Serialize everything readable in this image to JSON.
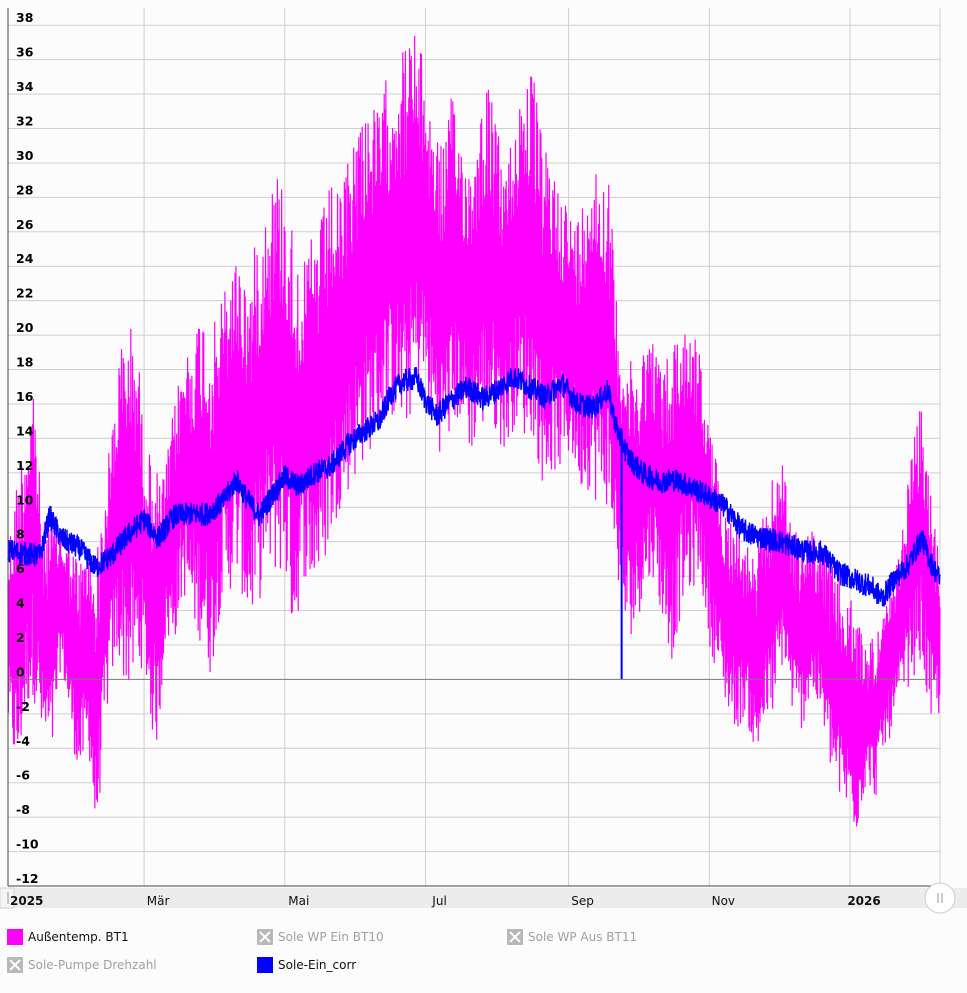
{
  "chart_data": {
    "type": "line",
    "ylim": [
      -12,
      39
    ],
    "y_ticks": [
      38,
      36,
      34,
      32,
      30,
      28,
      26,
      24,
      22,
      20,
      18,
      16,
      14,
      12,
      10,
      8,
      6,
      4,
      2,
      0,
      -2,
      -4,
      -6,
      -8,
      -10,
      -12
    ],
    "x_range": [
      "2025-01-01",
      "2026-02-09"
    ],
    "x_ticks": [
      {
        "label": "2025",
        "date": "2025-01-01",
        "bold": true
      },
      {
        "label": "Mär",
        "date": "2025-03-01",
        "bold": false
      },
      {
        "label": "Mai",
        "date": "2025-05-01",
        "bold": false
      },
      {
        "label": "Jul",
        "date": "2025-07-01",
        "bold": false
      },
      {
        "label": "Sep",
        "date": "2025-09-01",
        "bold": false
      },
      {
        "label": "Nov",
        "date": "2025-11-01",
        "bold": false
      },
      {
        "label": "2026",
        "date": "2026-01-01",
        "bold": true
      }
    ],
    "grid": true,
    "legend_position": "bottom",
    "series": [
      {
        "name": "Außentemp. BT1",
        "color": "#ff00ff",
        "visible": true,
        "points": [
          [
            "2025-01-01",
            -3,
            8
          ],
          [
            "2025-01-05",
            -6,
            12
          ],
          [
            "2025-01-09",
            -2,
            15
          ],
          [
            "2025-01-12",
            -1,
            18
          ],
          [
            "2025-01-16",
            -4,
            9
          ],
          [
            "2025-01-20",
            -5,
            10
          ],
          [
            "2025-01-24",
            1,
            9
          ],
          [
            "2025-01-28",
            -3,
            8
          ],
          [
            "2025-02-01",
            -6,
            7
          ],
          [
            "2025-02-05",
            -4,
            8
          ],
          [
            "2025-02-08",
            -10,
            7
          ],
          [
            "2025-02-12",
            -3,
            11
          ],
          [
            "2025-02-15",
            0,
            15
          ],
          [
            "2025-02-18",
            1,
            19
          ],
          [
            "2025-02-22",
            -1,
            21
          ],
          [
            "2025-02-26",
            0,
            20
          ],
          [
            "2025-03-01",
            1,
            14
          ],
          [
            "2025-03-04",
            -3,
            13
          ],
          [
            "2025-03-07",
            -4,
            12
          ],
          [
            "2025-03-10",
            2,
            12
          ],
          [
            "2025-03-14",
            2,
            16
          ],
          [
            "2025-03-18",
            5,
            19
          ],
          [
            "2025-03-22",
            3,
            20
          ],
          [
            "2025-03-26",
            2,
            22
          ],
          [
            "2025-03-30",
            0,
            20
          ],
          [
            "2025-04-03",
            4,
            22
          ],
          [
            "2025-04-07",
            5,
            24
          ],
          [
            "2025-04-11",
            6,
            25
          ],
          [
            "2025-04-15",
            3,
            23
          ],
          [
            "2025-04-19",
            4,
            26
          ],
          [
            "2025-04-23",
            6,
            28
          ],
          [
            "2025-04-27",
            6,
            30
          ],
          [
            "2025-05-01",
            6,
            29
          ],
          [
            "2025-05-05",
            2,
            26
          ],
          [
            "2025-05-09",
            6,
            24
          ],
          [
            "2025-05-13",
            5,
            26
          ],
          [
            "2025-05-17",
            6,
            27
          ],
          [
            "2025-05-21",
            8,
            29
          ],
          [
            "2025-05-25",
            10,
            28
          ],
          [
            "2025-05-29",
            11,
            31
          ],
          [
            "2025-06-02",
            12,
            33
          ],
          [
            "2025-06-06",
            13,
            34
          ],
          [
            "2025-06-10",
            14,
            33
          ],
          [
            "2025-06-14",
            15,
            35
          ],
          [
            "2025-06-18",
            15,
            36
          ],
          [
            "2025-06-22",
            14,
            37
          ],
          [
            "2025-06-26",
            16,
            38
          ],
          [
            "2025-06-30",
            17,
            36
          ],
          [
            "2025-07-04",
            14,
            33
          ],
          [
            "2025-07-08",
            13,
            31
          ],
          [
            "2025-07-12",
            14,
            34
          ],
          [
            "2025-07-16",
            15,
            32
          ],
          [
            "2025-07-20",
            13,
            30
          ],
          [
            "2025-07-24",
            14,
            33
          ],
          [
            "2025-07-28",
            15,
            35
          ],
          [
            "2025-08-01",
            14,
            32
          ],
          [
            "2025-08-05",
            13,
            30
          ],
          [
            "2025-08-09",
            15,
            33
          ],
          [
            "2025-08-13",
            14,
            36
          ],
          [
            "2025-08-17",
            14,
            35
          ],
          [
            "2025-08-21",
            11,
            31
          ],
          [
            "2025-08-25",
            12,
            30
          ],
          [
            "2025-08-29",
            12,
            29
          ],
          [
            "2025-09-02",
            13,
            27
          ],
          [
            "2025-09-06",
            11,
            27
          ],
          [
            "2025-09-10",
            11,
            31
          ],
          [
            "2025-09-14",
            10,
            30
          ],
          [
            "2025-09-18",
            10,
            30
          ],
          [
            "2025-09-22",
            6,
            22
          ],
          [
            "2025-09-26",
            2,
            19
          ],
          [
            "2025-09-30",
            3,
            18
          ],
          [
            "2025-10-04",
            5,
            20
          ],
          [
            "2025-10-08",
            6,
            20
          ],
          [
            "2025-10-12",
            3,
            18
          ],
          [
            "2025-10-16",
            1,
            20
          ],
          [
            "2025-10-20",
            4,
            21
          ],
          [
            "2025-10-24",
            5,
            21
          ],
          [
            "2025-10-28",
            6,
            19
          ],
          [
            "2025-11-01",
            2,
            15
          ],
          [
            "2025-11-05",
            0,
            12
          ],
          [
            "2025-11-09",
            -2,
            10
          ],
          [
            "2025-11-13",
            -3,
            9
          ],
          [
            "2025-11-17",
            -2,
            8
          ],
          [
            "2025-11-21",
            -5,
            7
          ],
          [
            "2025-11-25",
            -3,
            10
          ],
          [
            "2025-11-29",
            -2,
            12
          ],
          [
            "2025-12-03",
            1,
            13
          ],
          [
            "2025-12-07",
            -2,
            9
          ],
          [
            "2025-12-11",
            -3,
            8
          ],
          [
            "2025-12-15",
            -1,
            9
          ],
          [
            "2025-12-19",
            -2,
            8
          ],
          [
            "2025-12-23",
            -5,
            7
          ],
          [
            "2025-12-27",
            -7,
            6
          ],
          [
            "2025-12-31",
            -8,
            5
          ],
          [
            "2026-01-04",
            -9,
            4
          ],
          [
            "2026-01-08",
            -6,
            2
          ],
          [
            "2026-01-12",
            -7,
            3
          ],
          [
            "2026-01-16",
            -4,
            4
          ],
          [
            "2026-01-20",
            -3,
            6
          ],
          [
            "2026-01-24",
            -1,
            9
          ],
          [
            "2026-01-28",
            0,
            14
          ],
          [
            "2026-02-01",
            1,
            16
          ],
          [
            "2026-02-05",
            -3,
            11
          ],
          [
            "2026-02-09",
            -2,
            7
          ]
        ]
      },
      {
        "name": "Sole WP Ein BT10",
        "color": "#b8b8b8",
        "visible": false
      },
      {
        "name": "Sole WP Aus BT11",
        "color": "#b8b8b8",
        "visible": false
      },
      {
        "name": "Sole-Pumpe Drehzahl",
        "color": "#b8b8b8",
        "visible": false
      },
      {
        "name": "Sole-Ein_corr",
        "color": "#0000ff",
        "visible": true,
        "points": [
          [
            "2025-01-01",
            7.5
          ],
          [
            "2025-01-08",
            7.3
          ],
          [
            "2025-01-15",
            7.2
          ],
          [
            "2025-01-19",
            9.5
          ],
          [
            "2025-01-24",
            8.2
          ],
          [
            "2025-02-01",
            7.6
          ],
          [
            "2025-02-08",
            6.5
          ],
          [
            "2025-02-15",
            7.2
          ],
          [
            "2025-02-22",
            8.4
          ],
          [
            "2025-03-01",
            9.3
          ],
          [
            "2025-03-07",
            8.2
          ],
          [
            "2025-03-14",
            9.5
          ],
          [
            "2025-03-21",
            9.6
          ],
          [
            "2025-03-28",
            9.6
          ],
          [
            "2025-04-04",
            10.3
          ],
          [
            "2025-04-10",
            11.6
          ],
          [
            "2025-04-15",
            10.4
          ],
          [
            "2025-04-20",
            9.5
          ],
          [
            "2025-04-25",
            10.6
          ],
          [
            "2025-05-01",
            11.8
          ],
          [
            "2025-05-07",
            11.2
          ],
          [
            "2025-05-14",
            12.0
          ],
          [
            "2025-05-21",
            12.4
          ],
          [
            "2025-05-28",
            13.6
          ],
          [
            "2025-06-04",
            14.4
          ],
          [
            "2025-06-11",
            15.0
          ],
          [
            "2025-06-16",
            16.6
          ],
          [
            "2025-06-21",
            17.3
          ],
          [
            "2025-06-27",
            17.5
          ],
          [
            "2025-07-01",
            16.2
          ],
          [
            "2025-07-06",
            15.3
          ],
          [
            "2025-07-12",
            16.2
          ],
          [
            "2025-07-19",
            17.0
          ],
          [
            "2025-07-26",
            16.3
          ],
          [
            "2025-08-01",
            16.8
          ],
          [
            "2025-08-08",
            17.6
          ],
          [
            "2025-08-15",
            17.0
          ],
          [
            "2025-08-22",
            16.4
          ],
          [
            "2025-08-29",
            17.2
          ],
          [
            "2025-09-05",
            16.0
          ],
          [
            "2025-09-12",
            15.8
          ],
          [
            "2025-09-18",
            16.8
          ],
          [
            "2025-09-22",
            14.5
          ],
          [
            "2025-09-27",
            12.9
          ],
          [
            "2025-10-03",
            12.0
          ],
          [
            "2025-10-10",
            11.5
          ],
          [
            "2025-10-17",
            11.6
          ],
          [
            "2025-10-24",
            11.2
          ],
          [
            "2025-11-01",
            10.6
          ],
          [
            "2025-11-08",
            10.0
          ],
          [
            "2025-11-15",
            8.7
          ],
          [
            "2025-11-22",
            8.3
          ],
          [
            "2025-11-29",
            8.1
          ],
          [
            "2025-12-06",
            7.8
          ],
          [
            "2025-12-13",
            7.4
          ],
          [
            "2025-12-20",
            7.4
          ],
          [
            "2025-12-27",
            6.2
          ],
          [
            "2026-01-03",
            5.8
          ],
          [
            "2026-01-10",
            5.4
          ],
          [
            "2026-01-15",
            4.7
          ],
          [
            "2026-01-20",
            5.8
          ],
          [
            "2026-01-26",
            6.6
          ],
          [
            "2026-02-01",
            8.2
          ],
          [
            "2026-02-05",
            6.8
          ],
          [
            "2026-02-09",
            5.8
          ]
        ],
        "spike": {
          "date": "2025-09-24",
          "from": 14.5,
          "to": 0
        }
      }
    ]
  }
}
